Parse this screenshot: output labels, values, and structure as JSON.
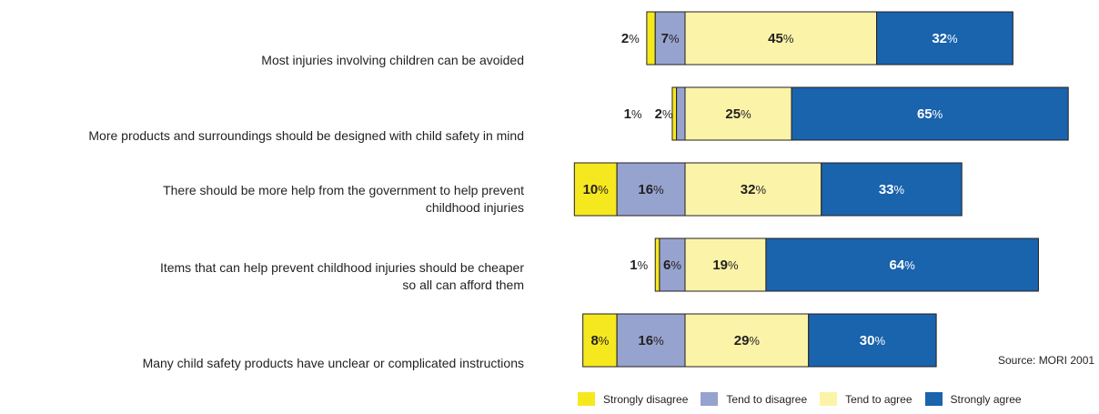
{
  "chart_data": {
    "type": "bar",
    "stacked": true,
    "orientation": "horizontal",
    "diverging": true,
    "source": "Source: MORI 2001",
    "percent_suffix": "%",
    "series": [
      {
        "name": "Strongly disagree",
        "color": "#f6e81e",
        "values": [
          2,
          1,
          10,
          1,
          8
        ]
      },
      {
        "name": "Tend to disagree",
        "color": "#97a3cf",
        "values": [
          7,
          2,
          16,
          6,
          16
        ]
      },
      {
        "name": "Tend to agree",
        "color": "#fbf3a8",
        "values": [
          45,
          25,
          32,
          19,
          29
        ]
      },
      {
        "name": "Strongly agree",
        "color": "#1a63ad",
        "values": [
          32,
          65,
          33,
          64,
          30
        ]
      }
    ],
    "categories": [
      [
        "Most injuries involving children can be avoided"
      ],
      [
        "More products and surroundings should be designed with child safety in mind"
      ],
      [
        "There should be more help from the government to help prevent",
        "childhood injuries"
      ],
      [
        "Items that can help prevent childhood injuries should be cheaper",
        "so all can afford them"
      ],
      [
        "Many child safety products have unclear or complicated instructions"
      ]
    ]
  }
}
